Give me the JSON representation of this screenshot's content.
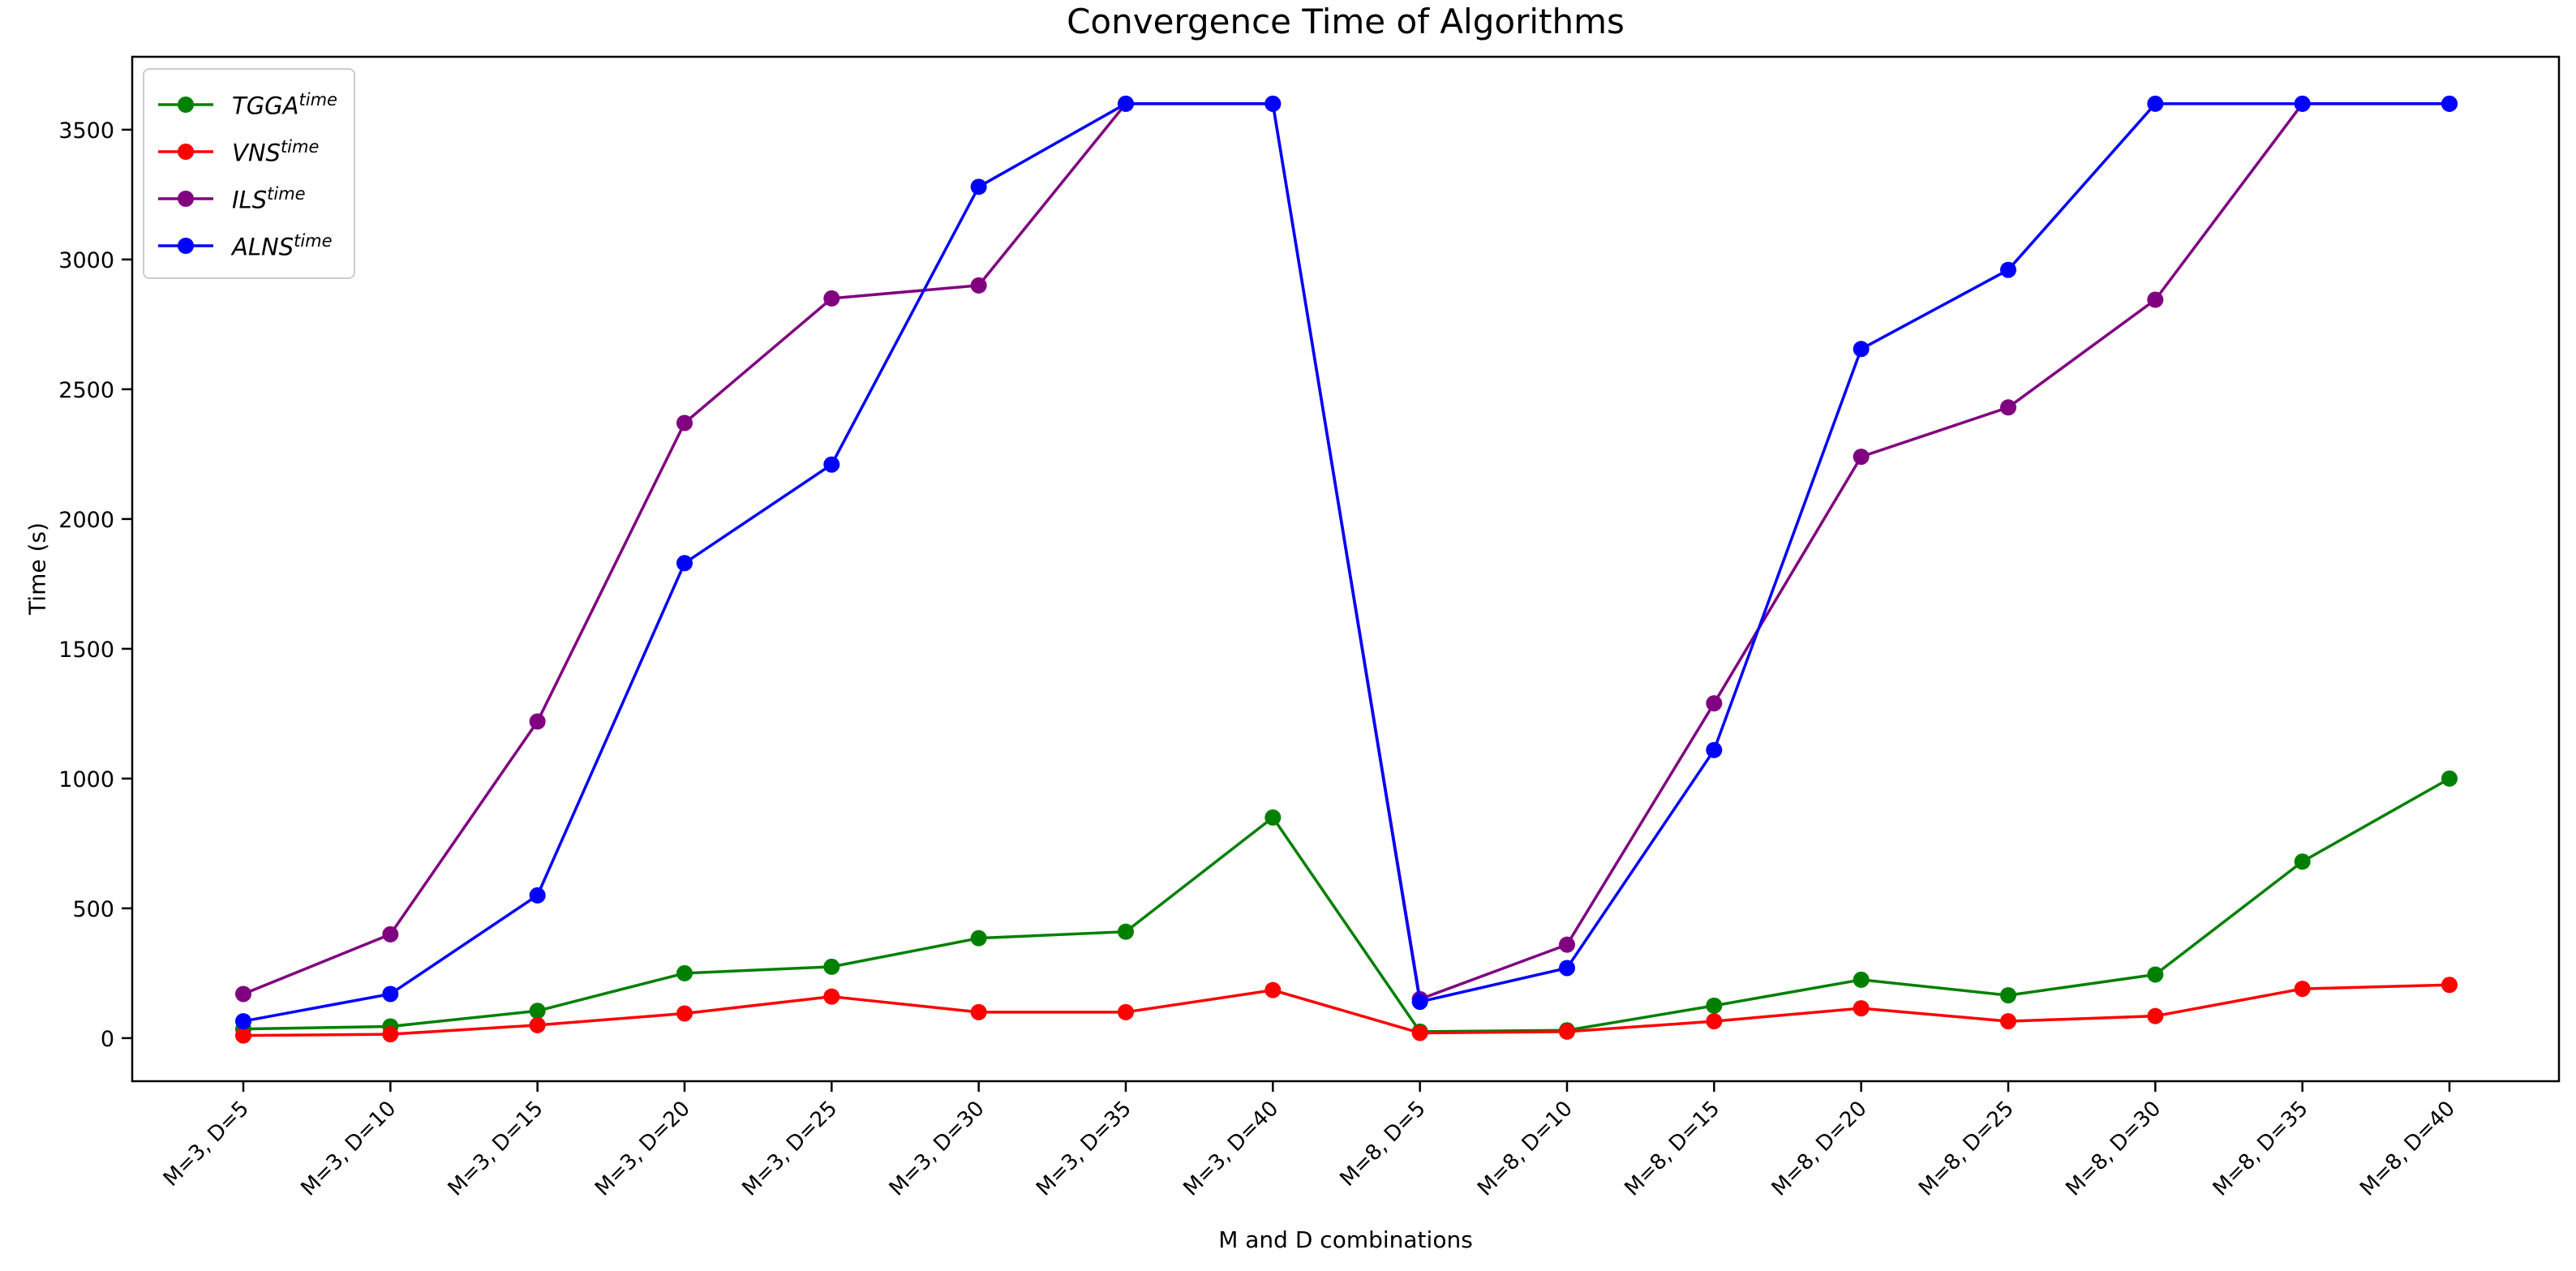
{
  "figure": {
    "background": "#ffffff"
  },
  "chart_data": {
    "type": "line",
    "title": "Convergence Time of Algorithms",
    "xlabel": "M and D combinations",
    "ylabel": "Time (s)",
    "categories": [
      "M=3, D=5",
      "M=3, D=10",
      "M=3, D=15",
      "M=3, D=20",
      "M=3, D=25",
      "M=3, D=30",
      "M=3, D=35",
      "M=3, D=40",
      "M=8, D=5",
      "M=8, D=10",
      "M=8, D=15",
      "M=8, D=20",
      "M=8, D=25",
      "M=8, D=30",
      "M=8, D=35",
      "M=8, D=40"
    ],
    "yticks": [
      0,
      500,
      1000,
      1500,
      2000,
      2500,
      3000,
      3500
    ],
    "ylim": [
      -166,
      3781
    ],
    "grid": false,
    "legend_position": "upper left",
    "series": [
      {
        "name": "TGGA",
        "sup": "time",
        "color": "#008000",
        "values": [
          35,
          45,
          105,
          250,
          275,
          385,
          410,
          850,
          25,
          30,
          125,
          225,
          165,
          245,
          680,
          1000
        ]
      },
      {
        "name": "VNS",
        "sup": "time",
        "color": "#ff0000",
        "values": [
          10,
          15,
          50,
          95,
          160,
          100,
          100,
          185,
          20,
          25,
          65,
          115,
          65,
          85,
          190,
          205
        ]
      },
      {
        "name": "ILS",
        "sup": "time",
        "color": "#800080",
        "values": [
          170,
          400,
          1220,
          2370,
          2850,
          2900,
          3600,
          3600,
          150,
          360,
          1290,
          2240,
          2430,
          2845,
          3600,
          3600
        ]
      },
      {
        "name": "ALNS",
        "sup": "time",
        "color": "#0000ff",
        "values": [
          65,
          170,
          550,
          1830,
          2210,
          3280,
          3600,
          3600,
          140,
          270,
          1110,
          2655,
          2960,
          3600,
          3600,
          3600
        ]
      }
    ]
  }
}
